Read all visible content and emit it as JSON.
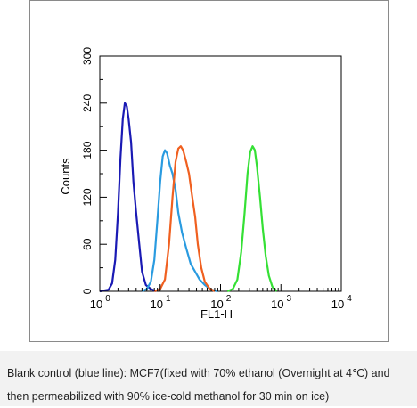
{
  "chart_data": {
    "type": "line",
    "xlabel": "FL1-H",
    "ylabel": "Counts",
    "x_scale": "log",
    "xlim": [
      1,
      10000
    ],
    "ylim": [
      0,
      300
    ],
    "x_ticks": [
      {
        "value": 1,
        "base": "10",
        "exp": "0"
      },
      {
        "value": 10,
        "base": "10",
        "exp": "1"
      },
      {
        "value": 100,
        "base": "10",
        "exp": "2"
      },
      {
        "value": 1000,
        "base": "10",
        "exp": "3"
      },
      {
        "value": 10000,
        "base": "10",
        "exp": "4"
      }
    ],
    "y_ticks": [
      0,
      60,
      120,
      180,
      240,
      300
    ],
    "grid": false,
    "legend": "none",
    "series": [
      {
        "color": "#1a1ab4",
        "points": [
          [
            1.0,
            0
          ],
          [
            1.4,
            2
          ],
          [
            1.6,
            10
          ],
          [
            1.8,
            40
          ],
          [
            2.0,
            100
          ],
          [
            2.2,
            170
          ],
          [
            2.4,
            220
          ],
          [
            2.6,
            240
          ],
          [
            2.8,
            236
          ],
          [
            3.0,
            220
          ],
          [
            3.3,
            190
          ],
          [
            3.6,
            140
          ],
          [
            4.0,
            100
          ],
          [
            4.5,
            60
          ],
          [
            5.0,
            25
          ],
          [
            5.8,
            8
          ],
          [
            7.0,
            3
          ],
          [
            8.5,
            0
          ]
        ]
      },
      {
        "color": "#2a9be0",
        "points": [
          [
            5.0,
            0
          ],
          [
            6.0,
            3
          ],
          [
            7.0,
            12
          ],
          [
            8.0,
            40
          ],
          [
            9.0,
            90
          ],
          [
            10.0,
            140
          ],
          [
            11.0,
            172
          ],
          [
            12.0,
            180
          ],
          [
            13.0,
            176
          ],
          [
            14.5,
            160
          ],
          [
            16.0,
            150
          ],
          [
            18.0,
            130
          ],
          [
            20.0,
            100
          ],
          [
            23.0,
            75
          ],
          [
            27.0,
            55
          ],
          [
            32.0,
            35
          ],
          [
            38.0,
            25
          ],
          [
            45.0,
            15
          ],
          [
            55.0,
            8
          ],
          [
            70.0,
            2
          ],
          [
            90.0,
            0
          ]
        ]
      },
      {
        "color": "#f06020",
        "points": [
          [
            8.0,
            0
          ],
          [
            10.0,
            3
          ],
          [
            12.0,
            15
          ],
          [
            14.0,
            60
          ],
          [
            16.0,
            120
          ],
          [
            18.0,
            165
          ],
          [
            20.0,
            182
          ],
          [
            22.0,
            185
          ],
          [
            24.0,
            180
          ],
          [
            27.0,
            165
          ],
          [
            30.0,
            150
          ],
          [
            34.0,
            120
          ],
          [
            38.0,
            95
          ],
          [
            42.0,
            60
          ],
          [
            48.0,
            30
          ],
          [
            55.0,
            12
          ],
          [
            65.0,
            4
          ],
          [
            80.0,
            0
          ]
        ]
      },
      {
        "color": "#35e035",
        "points": [
          [
            130.0,
            0
          ],
          [
            160.0,
            3
          ],
          [
            190.0,
            15
          ],
          [
            220.0,
            50
          ],
          [
            250.0,
            100
          ],
          [
            280.0,
            150
          ],
          [
            310.0,
            178
          ],
          [
            340.0,
            185
          ],
          [
            370.0,
            180
          ],
          [
            400.0,
            160
          ],
          [
            450.0,
            120
          ],
          [
            500.0,
            80
          ],
          [
            560.0,
            45
          ],
          [
            630.0,
            20
          ],
          [
            720.0,
            6
          ],
          [
            850.0,
            0
          ]
        ]
      }
    ]
  },
  "caption": {
    "line1": "Blank control (blue line): MCF7(fixed with 70% ethanol (Overnight at 4℃) and",
    "line2": "then permeabilized with 90% ice-cold methanol for 30 min on ice)"
  }
}
